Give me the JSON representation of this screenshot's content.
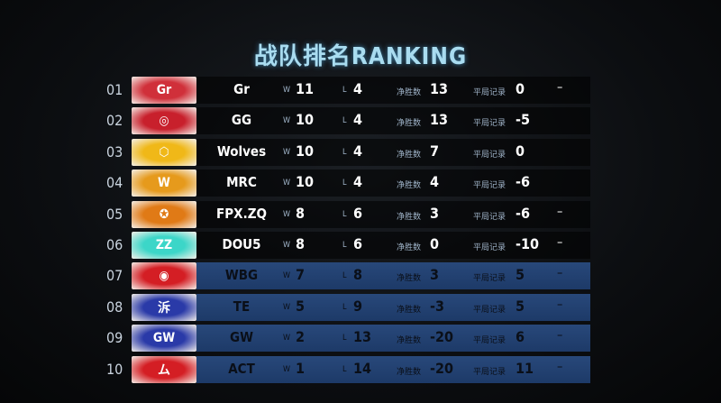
{
  "title": "战队排名RANKING",
  "labels": {
    "win": "W",
    "loss": "L",
    "net": "净胜数",
    "draw": "平局记录"
  },
  "teams": [
    {
      "rank": "01",
      "name": "Gr",
      "w": "11",
      "l": "4",
      "net": "13",
      "draw": "0",
      "mark": "–",
      "logo_color": "#d0303a",
      "logo_text": "Gr"
    },
    {
      "rank": "02",
      "name": "GG",
      "w": "10",
      "l": "4",
      "net": "13",
      "draw": "-5",
      "mark": "",
      "logo_color": "#c8202c",
      "logo_text": "◎"
    },
    {
      "rank": "03",
      "name": "Wolves",
      "w": "10",
      "l": "4",
      "net": "7",
      "draw": "0",
      "mark": "",
      "logo_color": "#f0b818",
      "logo_text": "⬡"
    },
    {
      "rank": "04",
      "name": "MRC",
      "w": "10",
      "l": "4",
      "net": "4",
      "draw": "-6",
      "mark": "",
      "logo_color": "#e69a1c",
      "logo_text": "W"
    },
    {
      "rank": "05",
      "name": "FPX.ZQ",
      "w": "8",
      "l": "6",
      "net": "3",
      "draw": "-6",
      "mark": "–",
      "logo_color": "#e07a16",
      "logo_text": "✪"
    },
    {
      "rank": "06",
      "name": "DOU5",
      "w": "8",
      "l": "6",
      "net": "0",
      "draw": "-10",
      "mark": "–",
      "logo_color": "#3cd6c8",
      "logo_text": "ZZ"
    },
    {
      "rank": "07",
      "name": "WBG",
      "w": "7",
      "l": "8",
      "net": "3",
      "draw": "5",
      "mark": "–",
      "logo_color": "#d41e24",
      "logo_text": "◉"
    },
    {
      "rank": "08",
      "name": "TE",
      "w": "5",
      "l": "9",
      "net": "-3",
      "draw": "5",
      "mark": "–",
      "logo_color": "#2a3aa8",
      "logo_text": "泝"
    },
    {
      "rank": "09",
      "name": "GW",
      "w": "2",
      "l": "13",
      "net": "-20",
      "draw": "6",
      "mark": "–",
      "logo_color": "#2a3aa8",
      "logo_text": "GW"
    },
    {
      "rank": "10",
      "name": "ACT",
      "w": "1",
      "l": "14",
      "net": "-20",
      "draw": "11",
      "mark": "–",
      "logo_color": "#d41e24",
      "logo_text": "ム"
    }
  ]
}
